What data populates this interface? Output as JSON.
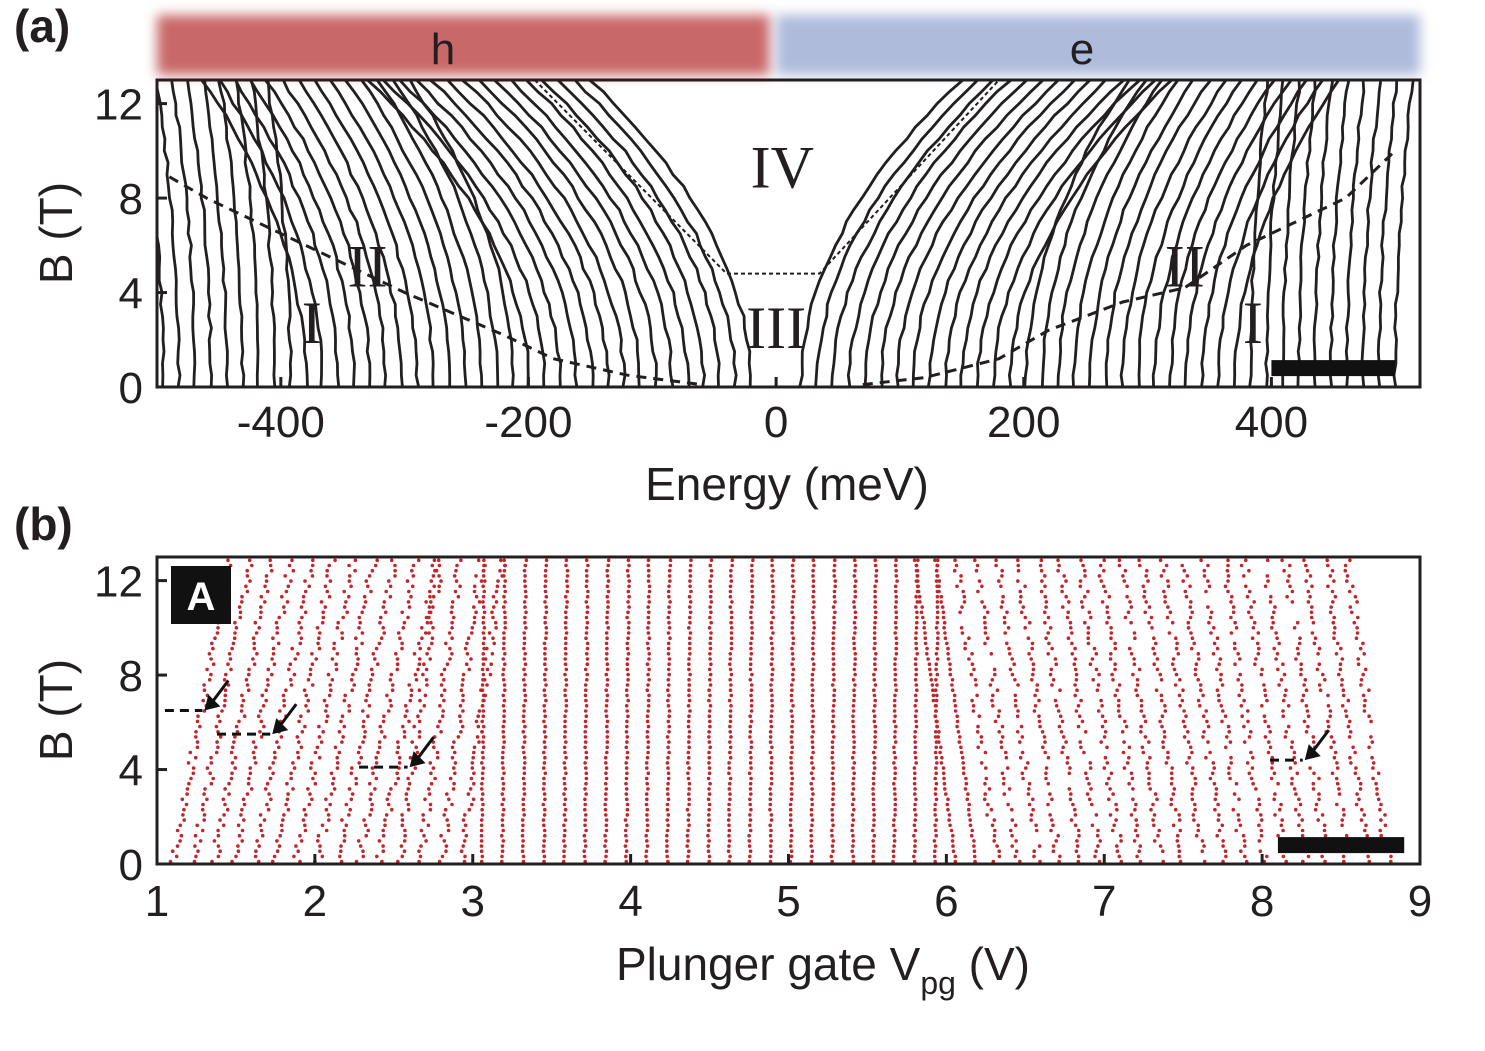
{
  "figure": {
    "panels": [
      {
        "label": "(a)",
        "chart_data": {
          "type": "line",
          "xlabel": "Energy (meV)",
          "ylabel": "B (T)",
          "xlim": [
            -500,
            520
          ],
          "ylim": [
            0,
            13
          ],
          "xticks": [
            -400,
            -200,
            0,
            200,
            400
          ],
          "yticks": [
            0,
            4,
            8,
            12
          ],
          "bands": [
            {
              "label": "h",
              "x_range": [
                -500,
                -5
              ],
              "color": "#c96767"
            },
            {
              "label": "e",
              "x_range": [
                0,
                520
              ],
              "color": "#aebbdb"
            }
          ],
          "regions": [
            {
              "label": "I",
              "x": -375,
              "y": 2.7
            },
            {
              "label": "II",
              "x": -330,
              "y": 5.1
            },
            {
              "label": "III",
              "x": 0,
              "y": 2.5
            },
            {
              "label": "IV",
              "x": 5,
              "y": 9.3
            },
            {
              "label": "II",
              "x": 330,
              "y": 5.1
            },
            {
              "label": "I",
              "x": 385,
              "y": 2.7
            }
          ],
          "line_color": "#231f20",
          "level_lines": {
            "hole_side": {
              "count": 38,
              "x_at_B0_range": [
                -495,
                -20
              ]
            },
            "electron_side": {
              "count": 38,
              "x_at_B0_range": [
                20,
                500
              ]
            }
          },
          "boundaries": [
            {
              "name": "lower boundary (hole side)",
              "style": "dashed",
              "points": [
                [
                  -490,
                  8.9
                ],
                [
                  -460,
                  8.0
                ],
                [
                  -420,
                  7.0
                ],
                [
                  -380,
                  6.0
                ],
                [
                  -300,
                  4.0
                ],
                [
                  -220,
                  2.2
                ],
                [
                  -180,
                  1.2
                ],
                [
                  -120,
                  0.5
                ],
                [
                  -60,
                  0.1
                ]
              ]
            },
            {
              "name": "lower boundary (electron side)",
              "style": "dashed",
              "points": [
                [
                  70,
                  0.1
                ],
                [
                  120,
                  0.4
                ],
                [
                  180,
                  1.2
                ],
                [
                  220,
                  2.4
                ],
                [
                  280,
                  3.6
                ],
                [
                  330,
                  4.2
                ],
                [
                  380,
                  6.0
                ],
                [
                  420,
                  7.0
                ],
                [
                  460,
                  8.0
                ],
                [
                  500,
                  10.0
                ]
              ]
            },
            {
              "name": "region IV boundary",
              "style": "dotted",
              "points": [
                [
                  -195,
                  13
                ],
                [
                  -40,
                  4.8
                ],
                [
                  35,
                  4.8
                ],
                [
                  180,
                  13
                ]
              ]
            }
          ],
          "scale_bar": {
            "x_range": [
              400,
              500
            ],
            "y": 0.8,
            "color": "#111111"
          }
        }
      },
      {
        "label": "(b)",
        "badge": "A",
        "chart_data": {
          "type": "scatter",
          "xlabel_main": "Plunger gate V",
          "xlabel_sub": "pg",
          "xlabel_unit": " (V)",
          "ylabel": "B (T)",
          "xlim": [
            1,
            9
          ],
          "ylim": [
            0,
            13
          ],
          "xticks": [
            1,
            2,
            3,
            4,
            5,
            6,
            7,
            8,
            9
          ],
          "yticks": [
            0,
            4,
            8,
            12
          ],
          "marker_color": "#c0272d",
          "peak_traces": {
            "count": 60,
            "x_at_B0_range": [
              1.1,
              8.8
            ]
          },
          "annotations": [
            {
              "type": "arrow",
              "x": 1.3,
              "y": 6.5,
              "dash_from_x": 1.05
            },
            {
              "type": "arrow",
              "x": 1.73,
              "y": 5.5,
              "dash_from_x": 1.38
            },
            {
              "type": "arrow",
              "x": 2.6,
              "y": 4.1,
              "dash_from_x": 2.28
            },
            {
              "type": "arrow",
              "x": 8.27,
              "y": 4.4,
              "dash_from_x": 8.05
            }
          ],
          "scale_bar": {
            "x_range": [
              8.1,
              8.9
            ],
            "y": 0.8,
            "color": "#111111"
          }
        }
      }
    ]
  }
}
